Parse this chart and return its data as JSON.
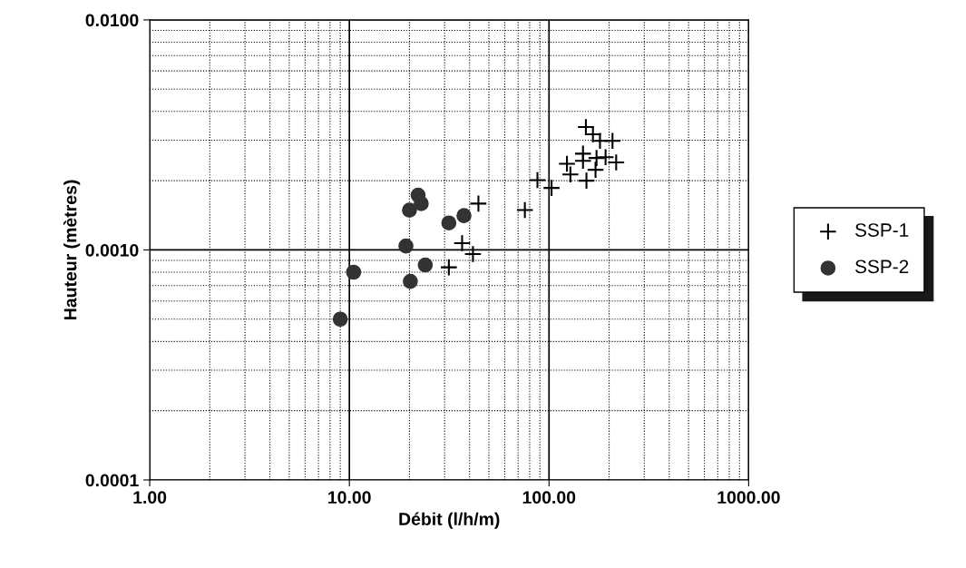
{
  "chart_data": {
    "type": "scatter",
    "xlabel": "Débit (l/h/m)",
    "ylabel": "Hauteur (mètres)",
    "log": "xy",
    "grid": true,
    "legend": "right",
    "xlim": [
      1,
      1000
    ],
    "ylim": [
      0.0001,
      0.01
    ],
    "xticks": [
      {
        "value": 1,
        "label": "1.00"
      },
      {
        "value": 10,
        "label": "10.00"
      },
      {
        "value": 100,
        "label": "100.00"
      },
      {
        "value": 1000,
        "label": "1000.00"
      }
    ],
    "yticks": [
      {
        "value": 0.0001,
        "label": "0.0001"
      },
      {
        "value": 0.001,
        "label": "0.0010"
      },
      {
        "value": 0.01,
        "label": "0.0100"
      }
    ],
    "series": [
      {
        "name": "SSP-1",
        "color": "#000000",
        "marker": "cross",
        "x": [
          44.3,
          36.7,
          41.6,
          31.5,
          153,
          166,
          180,
          208,
          148,
          148,
          173,
          192,
          123,
          217,
          171,
          128,
          154,
          87.5,
          103,
          75.7
        ],
        "values": [
          0.00159,
          0.00107,
          0.00096,
          0.00084,
          0.00342,
          0.00318,
          0.00298,
          0.00298,
          0.00262,
          0.00244,
          0.00251,
          0.00253,
          0.00237,
          0.0024,
          0.00223,
          0.00213,
          0.002,
          0.00201,
          0.00186,
          0.00149
        ]
      },
      {
        "name": "SSP-2",
        "color": "#333333",
        "marker": "circle",
        "x": [
          22.1,
          22.9,
          20.0,
          37.5,
          31.5,
          19.2,
          24.0,
          10.5,
          20.2,
          9.0
        ],
        "values": [
          0.00173,
          0.00159,
          0.00149,
          0.00141,
          0.00131,
          0.00104,
          0.00086,
          0.0008,
          0.00073,
          0.0005
        ]
      }
    ]
  }
}
